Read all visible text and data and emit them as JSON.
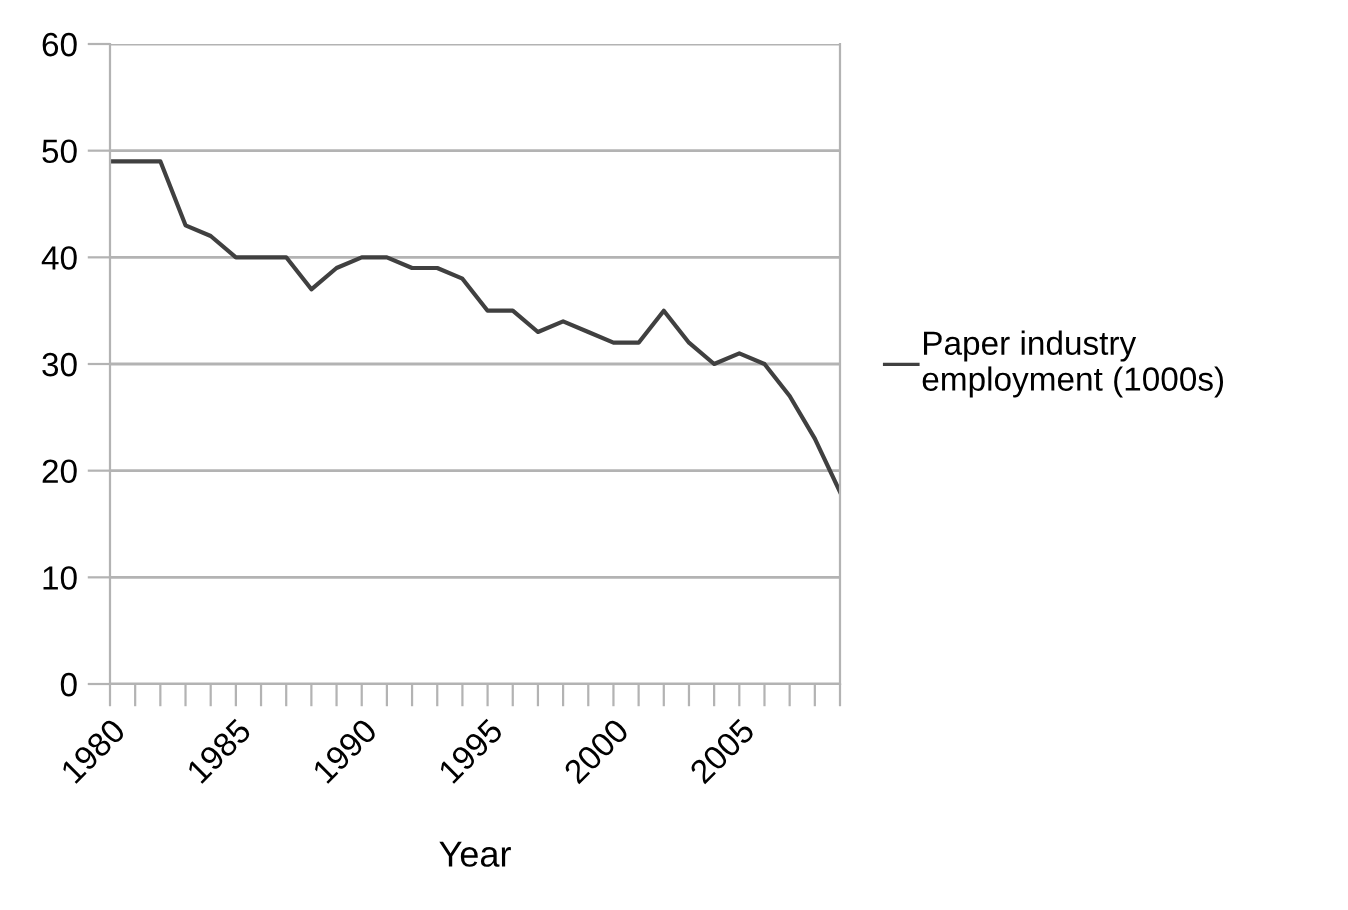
{
  "chart_data": {
    "type": "line",
    "xlabel": "Year",
    "x": [
      1980,
      1981,
      1982,
      1983,
      1984,
      1985,
      1986,
      1987,
      1988,
      1989,
      1990,
      1991,
      1992,
      1993,
      1994,
      1995,
      1996,
      1997,
      1998,
      1999,
      2000,
      2001,
      2002,
      2003,
      2004,
      2005,
      2006,
      2007,
      2008,
      2009
    ],
    "series": [
      {
        "name": "Paper industry\nemployment (1000s)",
        "color": "#404040",
        "values": [
          49,
          49,
          49,
          43,
          42,
          40,
          40,
          40,
          37,
          39,
          40,
          40,
          39,
          39,
          38,
          35,
          35,
          33,
          34,
          33,
          32,
          32,
          35,
          32,
          30,
          31,
          30,
          27,
          23,
          18
        ]
      }
    ],
    "xlim": [
      1980,
      2009
    ],
    "xticks": [
      1980,
      {
        "value": 1981,
        "label": null
      },
      {
        "value": 1982,
        "label": null
      },
      {
        "value": 1983,
        "label": null
      },
      {
        "value": 1984,
        "label": null
      },
      1985,
      {
        "value": 1986,
        "label": null
      },
      {
        "value": 1987,
        "label": null
      },
      {
        "value": 1988,
        "label": null
      },
      {
        "value": 1989,
        "label": null
      },
      1990,
      {
        "value": 1991,
        "label": null
      },
      {
        "value": 1992,
        "label": null
      },
      {
        "value": 1993,
        "label": null
      },
      {
        "value": 1994,
        "label": null
      },
      1995,
      {
        "value": 1996,
        "label": null
      },
      {
        "value": 1997,
        "label": null
      },
      {
        "value": 1998,
        "label": null
      },
      {
        "value": 1999,
        "label": null
      },
      2000,
      {
        "value": 2001,
        "label": null
      },
      {
        "value": 2002,
        "label": null
      },
      {
        "value": 2003,
        "label": null
      },
      {
        "value": 2004,
        "label": null
      },
      2005,
      {
        "value": 2006,
        "label": null
      },
      {
        "value": 2007,
        "label": null
      },
      {
        "value": 2008,
        "label": null
      },
      {
        "value": 2009,
        "label": null
      }
    ],
    "ylim": [
      0,
      60
    ],
    "yticks": [
      0,
      10,
      20,
      30,
      40,
      50,
      60
    ],
    "grid": "y",
    "legend": "right",
    "marker": "none",
    "line_style": "solid"
  }
}
